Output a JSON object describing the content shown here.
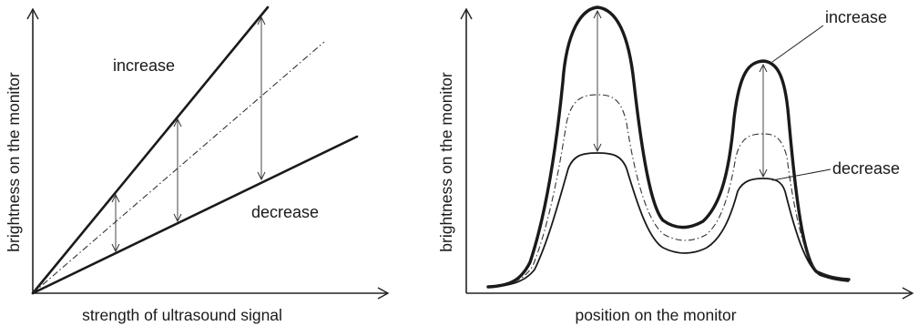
{
  "left_panel": {
    "label_increase": "increase",
    "label_decrease": "decrease",
    "x_axis_label": "strength of ultrasound signal",
    "y_axis_label": "brightness on the monitor"
  },
  "right_panel": {
    "label_increase": "increase",
    "label_decrease": "decrease",
    "x_axis_label": "position on the monitor",
    "y_axis_label": "brightness on the monitor"
  }
}
